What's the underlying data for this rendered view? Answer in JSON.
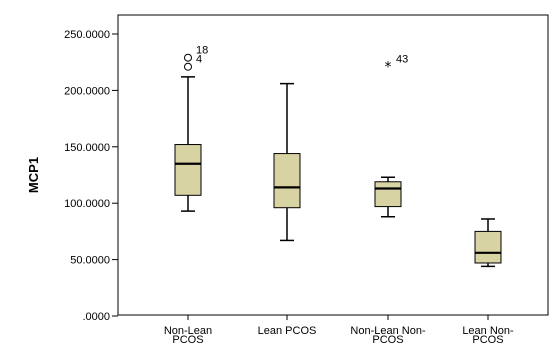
{
  "chart_data": {
    "type": "boxplot",
    "ylabel": "MCP1",
    "xlabel": "",
    "ylim": [
      0,
      250
    ],
    "y_ticks": [
      {
        "value": 0,
        "label": ".0000"
      },
      {
        "value": 50,
        "label": "50.0000"
      },
      {
        "value": 100,
        "label": "100.0000"
      },
      {
        "value": 150,
        "label": "150.0000"
      },
      {
        "value": 200,
        "label": "200.0000"
      },
      {
        "value": 250,
        "label": "250.0000"
      }
    ],
    "categories": [
      {
        "line1": "Non-Lean",
        "line2": "PCOS"
      },
      {
        "line1": "Lean PCOS",
        "line2": ""
      },
      {
        "line1": "Non-Lean Non-",
        "line2": "PCOS"
      },
      {
        "line1": "Lean Non-",
        "line2": "PCOS"
      }
    ],
    "boxes": [
      {
        "whisker_low": 93,
        "q1": 107,
        "median": 135,
        "q3": 152,
        "whisker_high": 212
      },
      {
        "whisker_low": 67,
        "q1": 96,
        "median": 114,
        "q3": 144,
        "whisker_high": 206
      },
      {
        "whisker_low": 88,
        "q1": 97,
        "median": 113,
        "q3": 119,
        "whisker_high": 123
      },
      {
        "whisker_low": 44,
        "q1": 47,
        "median": 56,
        "q3": 75,
        "whisker_high": 86
      }
    ],
    "outliers": [
      {
        "category": 0,
        "value": 229,
        "marker": "circle",
        "label": "18"
      },
      {
        "category": 0,
        "value": 221,
        "marker": "circle",
        "label": "4"
      },
      {
        "category": 2,
        "value": 221,
        "marker": "star",
        "label": "43"
      }
    ],
    "box_color": "#d8d3a3",
    "line_color": "#000000",
    "grid": false
  }
}
